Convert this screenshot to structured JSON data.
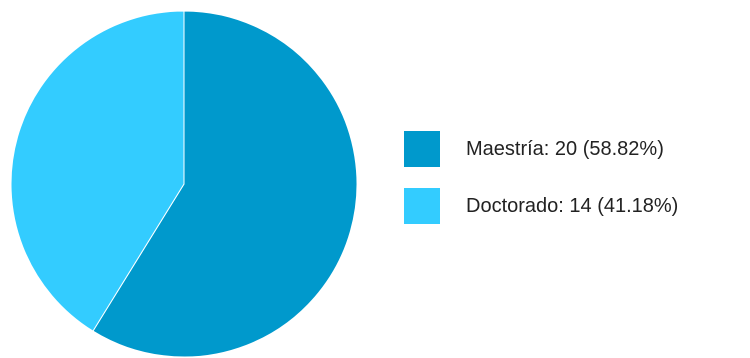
{
  "chart_data": {
    "type": "pie",
    "title": "",
    "categories": [
      "Maestría",
      "Doctorado"
    ],
    "values": [
      20,
      14
    ],
    "percentages": [
      58.82,
      41.18
    ],
    "colors": [
      "#0099cc",
      "#33ccff"
    ],
    "legend_position": "right",
    "legend": [
      {
        "label": "Maestría: 20 (58.82%)",
        "color": "#0099cc"
      },
      {
        "label": "Doctorado: 14 (41.18%)",
        "color": "#33ccff"
      }
    ]
  }
}
